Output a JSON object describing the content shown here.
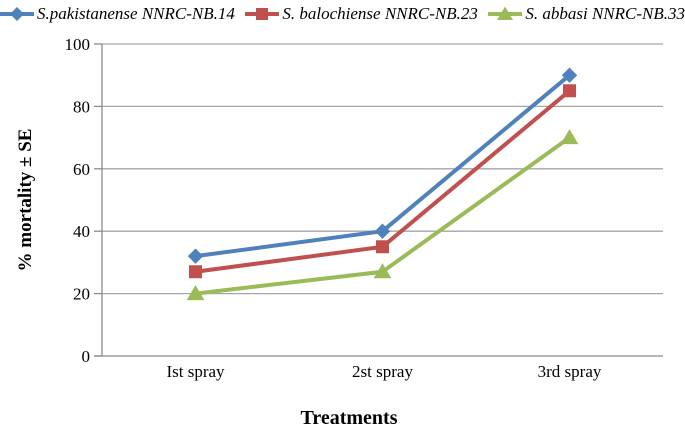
{
  "chart_data": {
    "type": "line",
    "title": "",
    "xlabel": "Treatments",
    "ylabel": "% mortality ± SE",
    "categories": [
      "Ist spray",
      "2st spray",
      "3rd spray"
    ],
    "series": [
      {
        "name": "S.pakistanense NNRC-NB.14",
        "marker": "diamond",
        "color": "#4F81BD",
        "values": [
          32,
          40,
          90
        ]
      },
      {
        "name": "S. balochiense NNRC-NB.23",
        "marker": "square",
        "color": "#C0504D",
        "values": [
          27,
          35,
          85
        ]
      },
      {
        "name": "S. abbasi NNRC-NB.33",
        "marker": "triangle",
        "color": "#9BBB59",
        "values": [
          20,
          27,
          70
        ]
      }
    ],
    "ylim": [
      0,
      100
    ],
    "yticks": [
      0,
      20,
      40,
      60,
      80,
      100
    ],
    "grid": "horizontal",
    "legend_position": "top",
    "colors": {
      "gridline": "#A6A6A6",
      "axis": "#8C8C8C",
      "text": "#000000",
      "background": "#FFFFFF"
    }
  }
}
